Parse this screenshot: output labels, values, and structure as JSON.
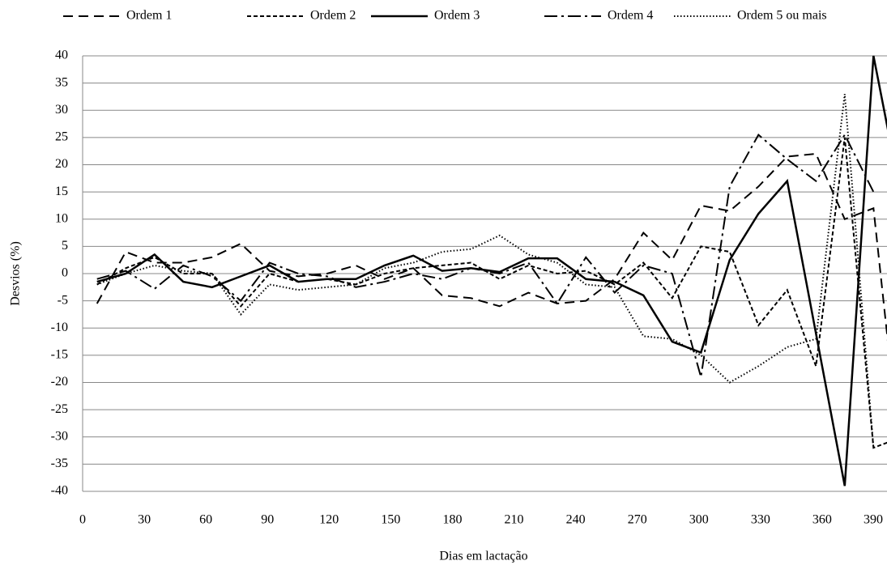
{
  "chart_data": {
    "type": "line",
    "x_label": "Dias em lactação",
    "y_label": "Desvios (%)",
    "x": [
      7,
      21,
      35,
      49,
      63,
      77,
      91,
      105,
      119,
      133,
      147,
      161,
      175,
      189,
      203,
      217,
      231,
      245,
      259,
      273,
      287,
      301,
      315,
      329,
      343,
      357,
      371,
      385,
      399
    ],
    "series": [
      {
        "name": "Ordem 1",
        "color": "#000000",
        "dash": "long-dash",
        "values": [
          -5.5,
          4,
          2,
          2,
          3,
          5.5,
          0.5,
          -0.5,
          0,
          1.5,
          -1,
          1,
          -4,
          -4.5,
          -6,
          -3.5,
          -5.5,
          -5,
          -1,
          7.5,
          2.5,
          12.5,
          11.5,
          16,
          21.5,
          22,
          10,
          12,
          -37
        ]
      },
      {
        "name": "Ordem 2",
        "color": "#000000",
        "dash": "short-dash",
        "values": [
          -2,
          1,
          3,
          0,
          0,
          -6,
          0,
          -1.5,
          -1,
          -2,
          0,
          1,
          1.5,
          2,
          -1,
          1.5,
          0,
          0.5,
          -2,
          2,
          -4.5,
          5,
          4,
          -9.5,
          -3,
          -17,
          25,
          -32,
          -30
        ]
      },
      {
        "name": "Ordem 3",
        "color": "#000000",
        "dash": "solid",
        "values": [
          -1.5,
          0,
          3.5,
          -1.5,
          -2.5,
          -0.5,
          1.5,
          -1.5,
          -1,
          -1,
          1.5,
          3.3,
          0.5,
          1,
          0.3,
          2.8,
          2.8,
          -1,
          -1.5,
          -4,
          -12.5,
          -14.5,
          2.5,
          11,
          17,
          -11,
          -39,
          40,
          13
        ]
      },
      {
        "name": "Ordem 4",
        "color": "#000000",
        "dash": "dash-dot",
        "values": [
          -1,
          0.5,
          -2.8,
          1.5,
          -0.5,
          -5,
          2,
          0,
          -0.5,
          -2.5,
          -1.5,
          0,
          -1,
          1,
          0,
          2,
          -5.5,
          3,
          -3.5,
          1.5,
          0,
          -19,
          16,
          25.5,
          21,
          17,
          25.5,
          15,
          null
        ]
      },
      {
        "name": "Ordem 5 ou mais",
        "color": "#000000",
        "dash": "dotted",
        "values": [
          -2,
          0,
          1.5,
          0.5,
          0,
          -7.5,
          -2,
          -3,
          -2.5,
          -2,
          1,
          2,
          4,
          4.5,
          7,
          3.5,
          2,
          -2,
          -2.5,
          -11.5,
          -12,
          -15,
          -20,
          -17,
          -13.5,
          -12,
          33,
          -32,
          null
        ]
      }
    ],
    "xlim": [
      0,
      390
    ],
    "xticks": [
      0,
      30,
      60,
      90,
      120,
      150,
      180,
      210,
      240,
      270,
      300,
      330,
      360,
      390
    ],
    "ylim": [
      -40,
      40
    ],
    "yticks": [
      -40,
      -35,
      -30,
      -25,
      -20,
      -15,
      -10,
      -5,
      0,
      5,
      10,
      15,
      20,
      25,
      30,
      35,
      40
    ],
    "grid": true,
    "legend": "top"
  }
}
